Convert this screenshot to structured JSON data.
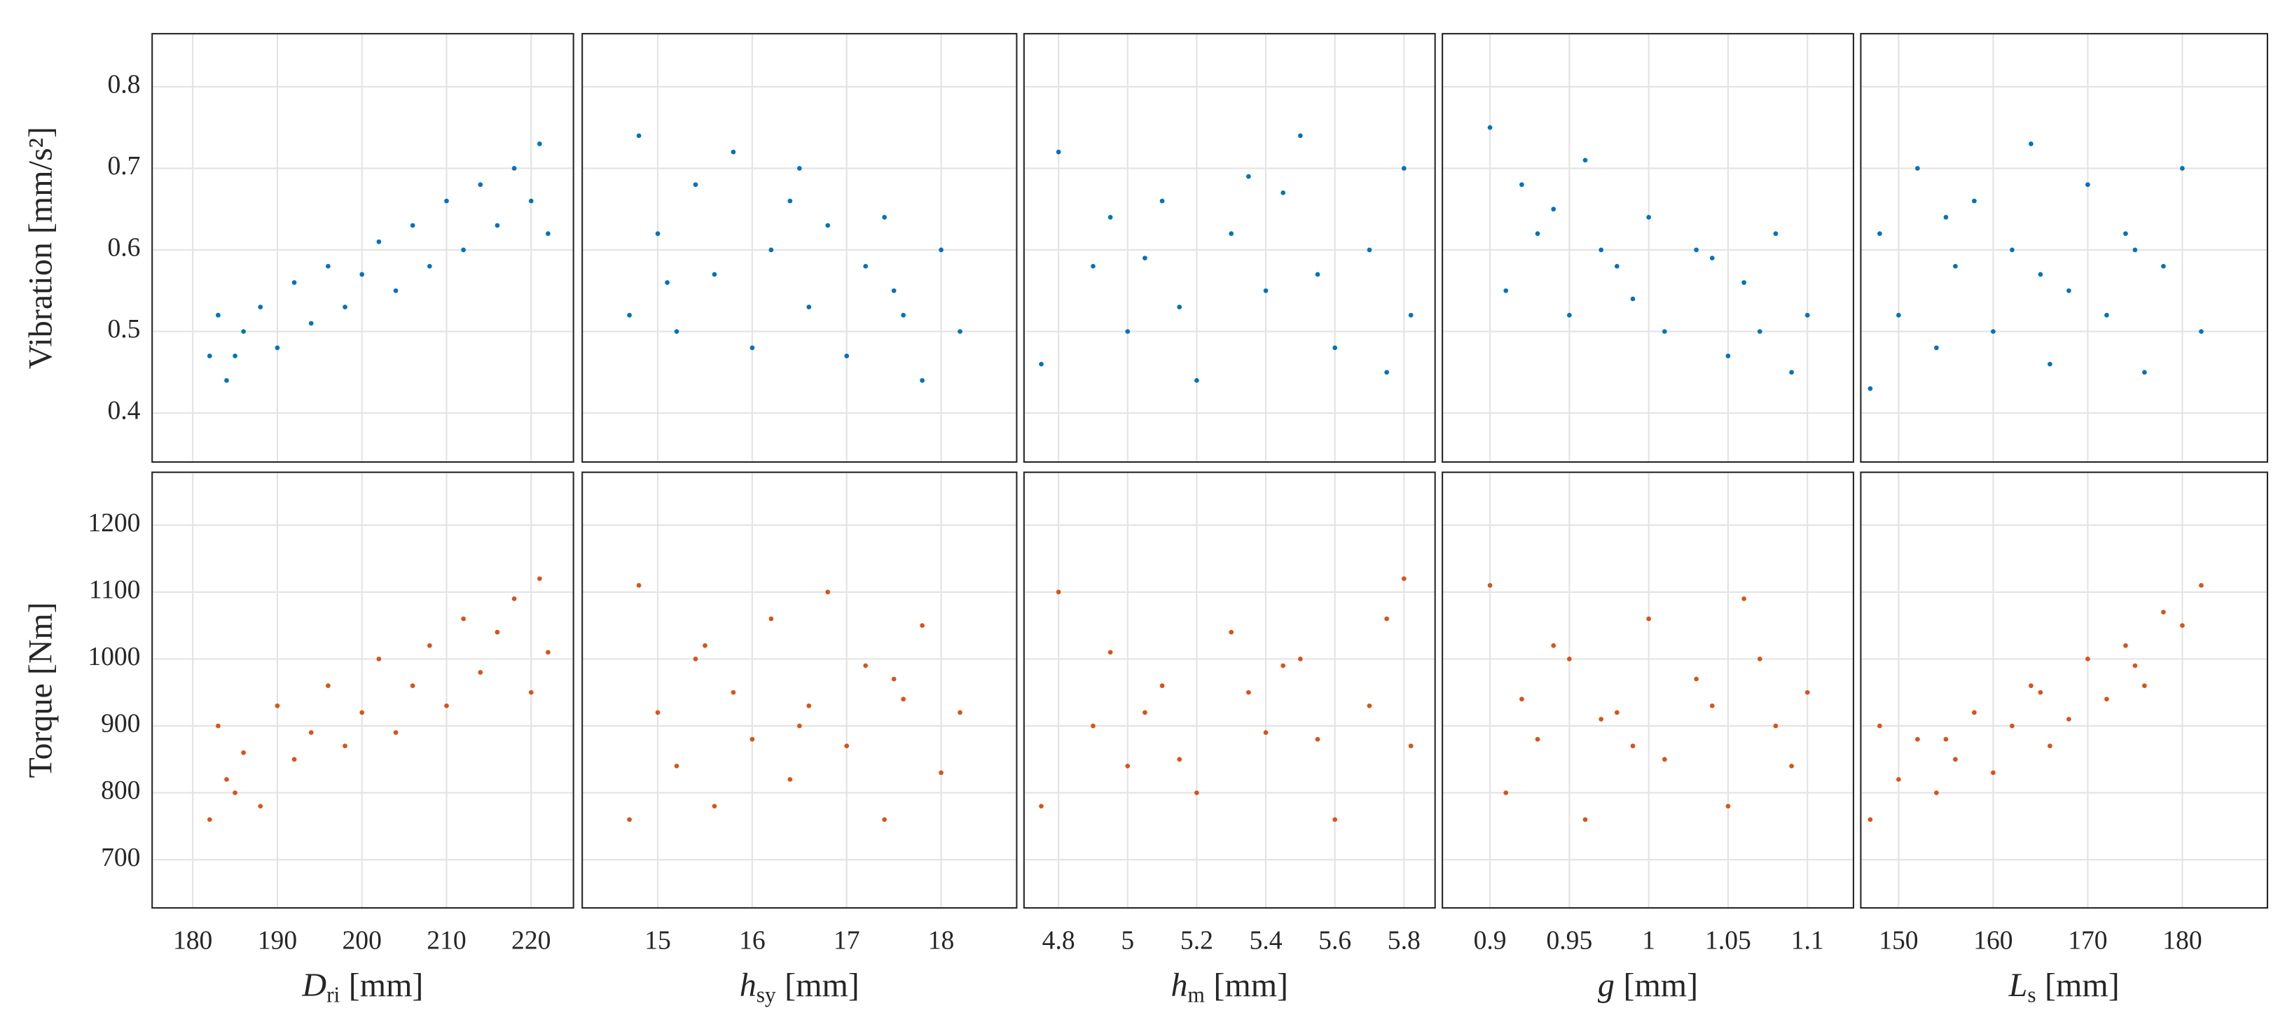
{
  "chart_data": {
    "type": "scatter",
    "grid": true,
    "columns": [
      {
        "xlabel": {
          "symbol": "D",
          "sub": "ri",
          "unit": "[mm]"
        },
        "xlim": [
          175.2,
          225
        ],
        "xticks": [
          180,
          190,
          200,
          210,
          220
        ]
      },
      {
        "xlabel": {
          "symbol": "h",
          "sub": "sy",
          "unit": "[mm]"
        },
        "xlim": [
          14.2,
          18.8
        ],
        "xticks": [
          15,
          16,
          17,
          18
        ]
      },
      {
        "xlabel": {
          "symbol": "h",
          "sub": "m",
          "unit": "[mm]"
        },
        "xlim": [
          4.7,
          5.89
        ],
        "xticks": [
          4.8,
          5,
          5.2,
          5.4,
          5.6,
          5.8
        ]
      },
      {
        "xlabel": {
          "symbol": "g",
          "unit": "[mm]"
        },
        "xlim": [
          0.87,
          1.129
        ],
        "xticks": [
          0.9,
          0.95,
          1,
          1.05,
          1.1
        ]
      },
      {
        "xlabel": {
          "symbol": "L",
          "sub": "s",
          "unit": "[mm]"
        },
        "xlim": [
          146,
          189
        ],
        "xticks": [
          150,
          160,
          170,
          180
        ]
      }
    ],
    "rows": [
      {
        "ylabel": "Vibration [mm/s²]",
        "color": "#0072BD",
        "ylim": [
          0.34,
          0.865
        ],
        "yticks": [
          0.4,
          0.5,
          0.6,
          0.7,
          0.8
        ],
        "panels": [
          {
            "x": [
              182,
              183,
              184,
              186,
              188,
              190,
              192,
              194,
              196,
              198,
              200,
              202,
              204,
              206,
              208,
              210,
              212,
              214,
              216,
              218,
              220,
              221,
              222,
              185
            ],
            "y": [
              0.47,
              0.52,
              0.44,
              0.5,
              0.53,
              0.48,
              0.56,
              0.51,
              0.58,
              0.53,
              0.57,
              0.61,
              0.55,
              0.63,
              0.58,
              0.66,
              0.6,
              0.68,
              0.63,
              0.7,
              0.66,
              0.73,
              0.62,
              0.47
            ]
          },
          {
            "x": [
              14.7,
              14.8,
              15.0,
              15.2,
              15.4,
              15.6,
              15.8,
              16.0,
              16.2,
              16.4,
              16.6,
              16.8,
              17.0,
              17.2,
              17.4,
              17.6,
              17.8,
              18.0,
              18.2,
              15.1,
              16.5,
              17.5
            ],
            "y": [
              0.52,
              0.74,
              0.62,
              0.5,
              0.68,
              0.57,
              0.72,
              0.48,
              0.6,
              0.66,
              0.53,
              0.63,
              0.47,
              0.58,
              0.64,
              0.52,
              0.44,
              0.6,
              0.5,
              0.56,
              0.7,
              0.55
            ]
          },
          {
            "x": [
              4.75,
              4.8,
              4.9,
              5.0,
              5.1,
              5.2,
              5.3,
              5.4,
              5.5,
              5.6,
              5.7,
              5.8,
              5.82,
              4.95,
              5.15,
              5.35,
              5.55,
              5.75,
              5.05,
              5.45
            ],
            "y": [
              0.46,
              0.72,
              0.58,
              0.5,
              0.66,
              0.44,
              0.62,
              0.55,
              0.74,
              0.48,
              0.6,
              0.7,
              0.52,
              0.64,
              0.53,
              0.69,
              0.57,
              0.45,
              0.59,
              0.67
            ]
          },
          {
            "x": [
              0.9,
              0.91,
              0.92,
              0.93,
              0.95,
              0.96,
              0.98,
              1.0,
              1.01,
              1.03,
              1.05,
              1.06,
              1.08,
              1.09,
              1.1,
              0.94,
              0.99,
              1.04,
              1.07,
              0.97
            ],
            "y": [
              0.75,
              0.55,
              0.68,
              0.62,
              0.52,
              0.71,
              0.58,
              0.64,
              0.5,
              0.6,
              0.47,
              0.56,
              0.62,
              0.45,
              0.52,
              0.65,
              0.54,
              0.59,
              0.5,
              0.6
            ]
          },
          {
            "x": [
              147,
              148,
              150,
              152,
              154,
              156,
              158,
              160,
              162,
              164,
              166,
              168,
              170,
              172,
              174,
              176,
              178,
              180,
              182,
              155,
              165,
              175
            ],
            "y": [
              0.43,
              0.62,
              0.52,
              0.7,
              0.48,
              0.58,
              0.66,
              0.5,
              0.6,
              0.73,
              0.46,
              0.55,
              0.68,
              0.52,
              0.62,
              0.45,
              0.58,
              0.7,
              0.5,
              0.64,
              0.57,
              0.6
            ]
          }
        ]
      },
      {
        "ylabel": "Torque [Nm]",
        "color": "#D95319",
        "ylim": [
          628,
          1279
        ],
        "yticks": [
          700,
          800,
          900,
          1000,
          1100,
          1200
        ],
        "panels": [
          {
            "x": [
              182,
              183,
              184,
              186,
              188,
              190,
              192,
              194,
              196,
              198,
              200,
              202,
              204,
              206,
              208,
              210,
              212,
              214,
              216,
              218,
              220,
              221,
              222,
              185
            ],
            "y": [
              760,
              900,
              820,
              860,
              780,
              930,
              850,
              890,
              960,
              870,
              920,
              1000,
              890,
              960,
              1020,
              930,
              1060,
              980,
              1040,
              1090,
              950,
              1120,
              1010,
              800
            ]
          },
          {
            "x": [
              14.7,
              14.8,
              15.0,
              15.2,
              15.4,
              15.6,
              15.8,
              16.0,
              16.2,
              16.4,
              16.6,
              16.8,
              17.0,
              17.2,
              17.4,
              17.6,
              17.8,
              18.0,
              18.2,
              15.5,
              16.5,
              17.5
            ],
            "y": [
              760,
              1110,
              920,
              840,
              1000,
              780,
              950,
              880,
              1060,
              820,
              930,
              1100,
              870,
              990,
              760,
              940,
              1050,
              830,
              920,
              1020,
              900,
              970
            ]
          },
          {
            "x": [
              4.75,
              4.8,
              4.9,
              5.0,
              5.1,
              5.2,
              5.3,
              5.4,
              5.5,
              5.6,
              5.7,
              5.8,
              5.82,
              4.95,
              5.15,
              5.35,
              5.55,
              5.75,
              5.05,
              5.45
            ],
            "y": [
              780,
              1100,
              900,
              840,
              960,
              800,
              1040,
              890,
              1000,
              760,
              930,
              1120,
              870,
              1010,
              850,
              950,
              880,
              1060,
              920,
              990
            ]
          },
          {
            "x": [
              0.9,
              0.91,
              0.92,
              0.93,
              0.95,
              0.96,
              0.98,
              1.0,
              1.01,
              1.03,
              1.05,
              1.06,
              1.08,
              1.09,
              1.1,
              0.94,
              0.99,
              1.04,
              1.07,
              0.97
            ],
            "y": [
              1110,
              800,
              940,
              880,
              1000,
              760,
              920,
              1060,
              850,
              970,
              780,
              1090,
              900,
              840,
              950,
              1020,
              870,
              930,
              1000,
              910
            ]
          },
          {
            "x": [
              147,
              148,
              150,
              152,
              154,
              156,
              158,
              160,
              162,
              164,
              166,
              168,
              170,
              172,
              174,
              176,
              178,
              180,
              182,
              155,
              165,
              175
            ],
            "y": [
              760,
              900,
              820,
              880,
              800,
              850,
              920,
              830,
              900,
              960,
              870,
              910,
              1000,
              940,
              1020,
              960,
              1070,
              1050,
              1110,
              880,
              950,
              990
            ]
          }
        ]
      }
    ]
  }
}
